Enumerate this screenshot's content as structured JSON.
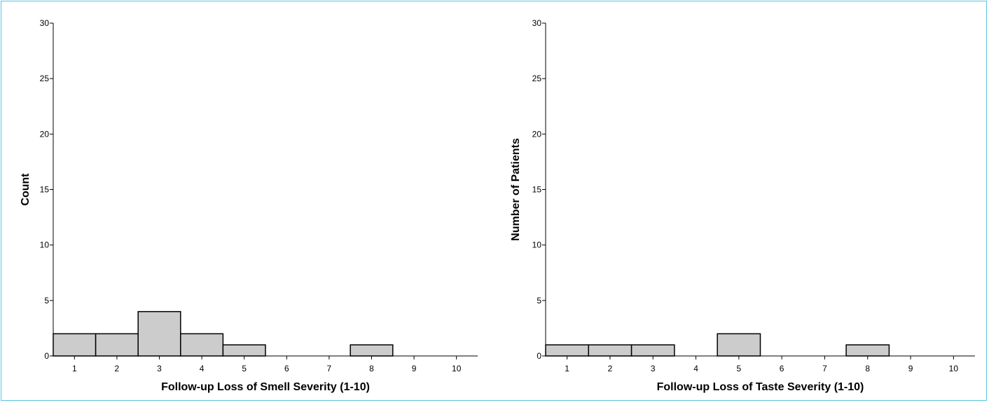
{
  "figure": {
    "border_color": "#5bc4e0",
    "bar_fill": "#cccccc",
    "bar_stroke": "#000000"
  },
  "chart_data": [
    {
      "type": "bar",
      "xlabel": "Follow-up Loss of Smell Severity (1-10)",
      "ylabel": "Count",
      "categories": [
        "1",
        "2",
        "3",
        "4",
        "5",
        "6",
        "7",
        "8",
        "9",
        "10"
      ],
      "values": [
        2,
        2,
        4,
        2,
        1,
        0,
        0,
        1,
        0,
        0
      ],
      "ylim": [
        0,
        30
      ],
      "yticks": [
        "0",
        "5",
        "10",
        "15",
        "20",
        "25",
        "30"
      ],
      "grid": false
    },
    {
      "type": "bar",
      "xlabel": "Follow-up Loss of Taste Severity (1-10)",
      "ylabel": "Number of Patients",
      "categories": [
        "1",
        "2",
        "3",
        "4",
        "5",
        "6",
        "7",
        "8",
        "9",
        "10"
      ],
      "values": [
        1,
        1,
        1,
        0,
        2,
        0,
        0,
        1,
        0,
        0
      ],
      "ylim": [
        0,
        30
      ],
      "yticks": [
        "0",
        "5",
        "10",
        "15",
        "20",
        "25",
        "30"
      ],
      "grid": false
    }
  ]
}
